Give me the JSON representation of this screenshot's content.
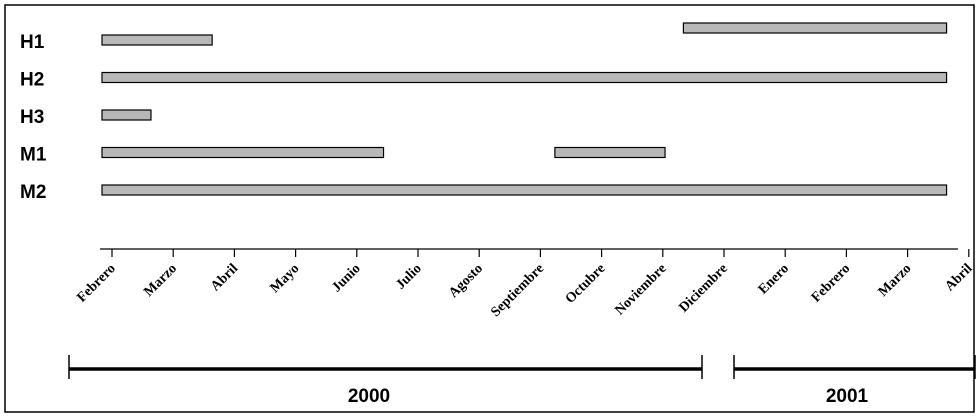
{
  "chart_data": {
    "type": "gantt",
    "months": [
      "Febrero",
      "Marzo",
      "Abril",
      "Mayo",
      "Junio",
      "Julio",
      "Agosto",
      "Septiembre",
      "Octubre",
      "Noviembre",
      "Diciembre",
      "Enero",
      "Febrero",
      "Marzo",
      "Abril"
    ],
    "rows": [
      {
        "name": "H1",
        "segments": [
          [
            0,
            1.8
          ],
          [
            9.5,
            13.8
          ]
        ]
      },
      {
        "name": "H2",
        "segments": [
          [
            0,
            13.8
          ]
        ]
      },
      {
        "name": "H3",
        "segments": [
          [
            0,
            0.8
          ]
        ]
      },
      {
        "name": "M1",
        "segments": [
          [
            0,
            4.6
          ],
          [
            7.4,
            9.2
          ]
        ]
      },
      {
        "name": "M2",
        "segments": [
          [
            0,
            13.8
          ]
        ]
      }
    ],
    "years": [
      {
        "label": "2000",
        "from": -0.5,
        "to": 9.2
      },
      {
        "label": "2001",
        "from": 9.8,
        "to": 14.2
      }
    ],
    "colors": {
      "bar_fill": "#b8b8b8",
      "bar_stroke": "#000000"
    }
  }
}
